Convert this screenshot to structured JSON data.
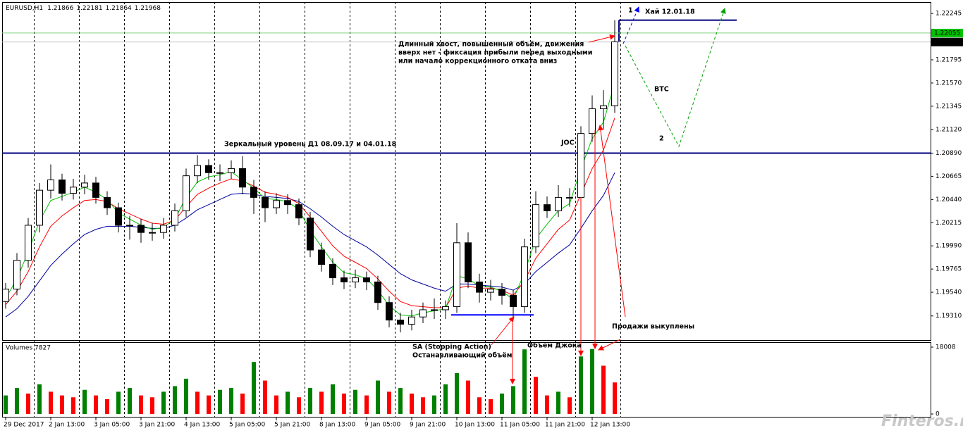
{
  "chart_data": {
    "type": "candlestick",
    "symbol": "EURUSD,H1",
    "ohlc": [
      1.21866,
      1.22181,
      1.21864,
      1.21968
    ],
    "categories": [
      "29 Dec 2017",
      null,
      null,
      null,
      "2 Jan 13:00",
      null,
      null,
      null,
      "3 Jan 05:00",
      null,
      null,
      null,
      "3 Jan 21:00",
      null,
      null,
      null,
      "4 Jan 13:00",
      null,
      null,
      null,
      "5 Jan 05:00",
      null,
      null,
      null,
      "5 Jan 21:00",
      null,
      null,
      null,
      "8 Jan 13:00",
      null,
      null,
      null,
      "9 Jan 05:00",
      null,
      null,
      null,
      "9 Jan 21:00",
      null,
      null,
      null,
      "10 Jan 13:00",
      null,
      null,
      null,
      "11 Jan 05:00",
      null,
      null,
      null,
      "11 Jan 21:00",
      null,
      null,
      null,
      "12 Jan 13:00",
      null,
      null
    ],
    "candles": [
      [
        1.1945,
        1.1963,
        1.1938,
        1.1957
      ],
      [
        1.1957,
        1.1992,
        1.1951,
        1.1985
      ],
      [
        1.1985,
        1.2026,
        1.1978,
        1.2019
      ],
      [
        1.2019,
        1.206,
        1.2012,
        1.2053
      ],
      [
        1.2053,
        1.2078,
        1.2045,
        1.2063
      ],
      [
        1.2063,
        1.2069,
        1.2043,
        1.205
      ],
      [
        1.205,
        1.2064,
        1.2044,
        1.2056
      ],
      [
        1.2056,
        1.2068,
        1.2049,
        1.206
      ],
      [
        1.206,
        1.2066,
        1.204,
        1.2046
      ],
      [
        1.2046,
        1.2052,
        1.2029,
        1.2036
      ],
      [
        1.2036,
        1.2041,
        1.2012,
        1.2019
      ],
      [
        1.2019,
        1.2028,
        1.2005,
        1.2019
      ],
      [
        1.2019,
        1.2025,
        1.2002,
        1.2012
      ],
      [
        1.2012,
        1.2021,
        1.2004,
        1.2012
      ],
      [
        1.2012,
        1.2026,
        1.2006,
        1.2019
      ],
      [
        1.2019,
        1.204,
        1.2013,
        1.2033
      ],
      [
        1.2033,
        1.2074,
        1.2027,
        1.2067
      ],
      [
        1.2067,
        1.2087,
        1.206,
        1.2077
      ],
      [
        1.2077,
        1.2083,
        1.2063,
        1.207
      ],
      [
        1.207,
        1.2078,
        1.2062,
        1.207
      ],
      [
        1.207,
        1.2082,
        1.2064,
        1.2074
      ],
      [
        1.2074,
        1.2086,
        1.2049,
        1.2056
      ],
      [
        1.2056,
        1.2063,
        1.203,
        1.2046
      ],
      [
        1.2046,
        1.2052,
        1.2022,
        1.2036
      ],
      [
        1.2036,
        1.205,
        1.203,
        1.2043
      ],
      [
        1.2043,
        1.2049,
        1.203,
        1.2039
      ],
      [
        1.2039,
        1.2045,
        1.2019,
        1.2026
      ],
      [
        1.2026,
        1.2032,
        1.1988,
        1.1995
      ],
      [
        1.1995,
        1.2002,
        1.1974,
        1.1981
      ],
      [
        1.1981,
        1.1987,
        1.1961,
        1.1968
      ],
      [
        1.1968,
        1.1975,
        1.1957,
        1.1964
      ],
      [
        1.1964,
        1.1976,
        1.1958,
        1.1968
      ],
      [
        1.1968,
        1.1974,
        1.1956,
        1.1964
      ],
      [
        1.1964,
        1.197,
        1.1937,
        1.1944
      ],
      [
        1.1944,
        1.195,
        1.192,
        1.1927
      ],
      [
        1.1927,
        1.1934,
        1.1915,
        1.1923
      ],
      [
        1.1923,
        1.1937,
        1.1917,
        1.193
      ],
      [
        1.193,
        1.1944,
        1.1924,
        1.1937
      ],
      [
        1.1937,
        1.1948,
        1.1928,
        1.1937
      ],
      [
        1.1937,
        1.1946,
        1.1928,
        1.194
      ],
      [
        1.194,
        1.2021,
        1.1934,
        1.2002
      ],
      [
        1.2002,
        1.2012,
        1.1958,
        1.1964
      ],
      [
        1.1964,
        1.1972,
        1.1944,
        1.1954
      ],
      [
        1.1954,
        1.1966,
        1.1946,
        1.1957
      ],
      [
        1.1957,
        1.1963,
        1.1942,
        1.1951
      ],
      [
        1.1951,
        1.1956,
        1.1928,
        1.194
      ],
      [
        1.194,
        1.2006,
        1.1934,
        1.1998
      ],
      [
        1.1998,
        1.2052,
        1.1992,
        1.2039
      ],
      [
        1.2039,
        1.2047,
        1.2026,
        1.2033
      ],
      [
        1.2033,
        1.2058,
        1.2027,
        1.2046
      ],
      [
        1.2046,
        1.2055,
        1.2037,
        1.2046
      ],
      [
        1.2046,
        1.2115,
        1.204,
        1.2108
      ],
      [
        1.2108,
        1.2145,
        1.21,
        1.2132
      ],
      [
        1.2132,
        1.215,
        1.2112,
        1.2135
      ],
      [
        1.2135,
        1.2218,
        1.2128,
        1.2197
      ]
    ],
    "up_color": "#ffffff",
    "down_color": "#000000",
    "ylim": [
      1.19076,
      1.22355
    ],
    "yticks": [
      1.22245,
      1.21795,
      {
        "value": 1.2157,
        "label": "1.21570"
      },
      1.21345,
      {
        "value": 1.2112,
        "label": "1.21120"
      },
      {
        "value": 1.2089,
        "label": "1.20890"
      },
      1.20665,
      {
        "value": 1.2044,
        "label": "1.20440"
      },
      1.20215,
      {
        "value": 1.1999,
        "label": "1.19990"
      },
      1.19765,
      {
        "value": 1.1954,
        "label": "1.19540"
      },
      {
        "value": 1.1931,
        "label": "1.19310"
      }
    ],
    "markers": [
      {
        "value": 1.22055,
        "color": "#00c000",
        "line_color": "#7cd07c"
      },
      {
        "value": 1.21968,
        "color": "#000000",
        "line_color": "#c0c0c0"
      }
    ],
    "levels": [
      {
        "value": 1.2089,
        "color": "#000080"
      },
      {
        "value": 1.2218,
        "color": "#000080"
      },
      {
        "value": 1.1932,
        "color": "#0000ff"
      }
    ],
    "series": [
      {
        "color": "#0000a0",
        "values": [
          1.193,
          1.1938,
          1.195,
          1.1965,
          1.198,
          1.1991,
          1.2001,
          1.201,
          1.2015,
          1.2018,
          1.2018,
          1.2018,
          1.2017,
          1.2016,
          1.2016,
          1.2019,
          1.2026,
          1.2034,
          1.2039,
          1.2044,
          1.2049,
          1.205,
          1.2049,
          1.2047,
          1.2046,
          1.2045,
          1.2042,
          1.2035,
          1.2027,
          1.2018,
          1.201,
          1.2004,
          1.1998,
          1.199,
          1.1981,
          1.1972,
          1.1966,
          1.1962,
          1.1958,
          1.1955,
          1.1962,
          1.1962,
          1.1961,
          1.196,
          1.1959,
          1.1956,
          1.1962,
          1.1974,
          1.1983,
          1.1992,
          1.2,
          1.2016,
          1.2033,
          1.2048,
          1.207
        ]
      },
      {
        "color": "#ff0000",
        "values": [
          1.1942,
          1.1955,
          1.1974,
          1.1998,
          1.2018,
          1.2028,
          1.2036,
          1.2043,
          1.2044,
          1.2042,
          1.2035,
          1.203,
          1.2025,
          1.2021,
          1.202,
          1.2024,
          1.2037,
          1.2049,
          1.2055,
          1.206,
          1.2064,
          1.2062,
          1.2057,
          1.2051,
          1.2049,
          1.2046,
          1.204,
          1.2027,
          1.2013,
          1.1999,
          1.1989,
          1.1983,
          1.1977,
          1.1967,
          1.1955,
          1.1945,
          1.1941,
          1.194,
          1.1939,
          1.1939,
          1.1958,
          1.196,
          1.1958,
          1.1958,
          1.1956,
          1.1951,
          1.1965,
          1.1987,
          1.2001,
          1.2015,
          1.2024,
          1.2049,
          1.2074,
          1.2092,
          1.2123
        ]
      },
      {
        "color": "#00c000",
        "values": [
          1.1948,
          1.1967,
          1.1993,
          1.2023,
          1.2043,
          1.2047,
          1.2051,
          1.2056,
          1.2051,
          1.2044,
          1.2031,
          1.2025,
          1.2019,
          1.2015,
          1.2017,
          1.2025,
          1.2046,
          1.2061,
          1.2066,
          1.2068,
          1.2071,
          1.2063,
          1.2055,
          1.2045,
          1.2044,
          1.2042,
          1.2034,
          1.2014,
          1.1998,
          1.1983,
          1.1973,
          1.1971,
          1.1967,
          1.1956,
          1.1941,
          1.1932,
          1.1931,
          1.1934,
          1.1936,
          1.1938,
          1.197,
          1.1967,
          1.196,
          1.1959,
          1.1955,
          1.1947,
          1.1973,
          1.2006,
          1.202,
          1.2033,
          1.204,
          1.2074,
          1.2103,
          1.2119,
          1.2157
        ]
      }
    ],
    "volume": {
      "title": "Volumes 7827",
      "up_color": "#008000",
      "down_color": "#ff0000",
      "ylim": [
        0,
        19150
      ],
      "yticks": [
        18008,
        0
      ],
      "values": [
        5000,
        7000,
        5500,
        8000,
        6000,
        5000,
        4500,
        6500,
        5000,
        4000,
        6000,
        7000,
        5000,
        4500,
        6000,
        7500,
        9500,
        6000,
        5000,
        6500,
        7000,
        5500,
        14000,
        9000,
        5000,
        6000,
        4500,
        7000,
        6000,
        8000,
        5500,
        6500,
        5000,
        9000,
        6000,
        7000,
        5500,
        4500,
        5000,
        8000,
        11000,
        9000,
        4500,
        4000,
        5500,
        7500,
        17400,
        10000,
        5000,
        6000,
        4500,
        15500,
        17500,
        13000,
        8500
      ]
    },
    "annotations": [
      "1",
      "Хай 12.01.18",
      "Длинный хвост, повышенный объём, движения",
      "вверх нет - фиксация прибыли перед выходными",
      "или начало коррекционного отката вниз",
      "BTC",
      "2",
      "JOC",
      "Зеркальный уровень Д1 08.09.17 и 04.01.18",
      "Продажи выкуплены",
      "Объём Джока",
      "SA (Stopping Action)",
      "Останавливающий объём"
    ],
    "watermark": "Finteros.ru"
  }
}
